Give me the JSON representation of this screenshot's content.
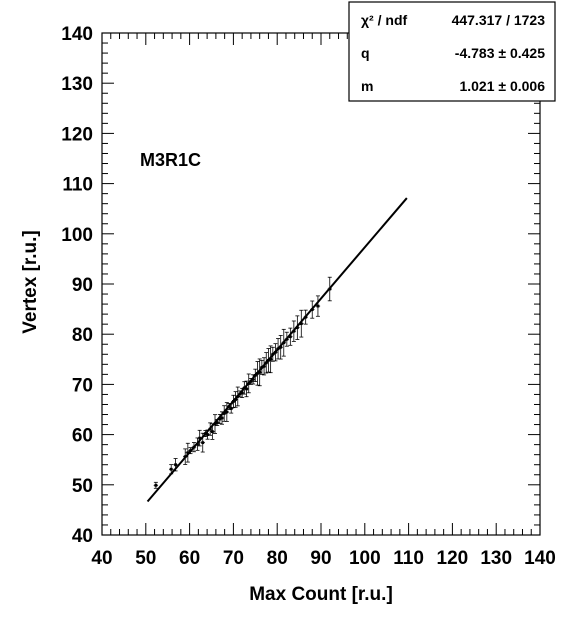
{
  "chart_data": {
    "type": "scatter",
    "title": "",
    "xlabel": "Max Count [r.u.]",
    "ylabel": "Vertex [r.u.]",
    "xlim": [
      40,
      140
    ],
    "ylim": [
      40,
      140
    ],
    "xticks": [
      "40",
      "50",
      "60",
      "70",
      "80",
      "90",
      "100",
      "110",
      "120",
      "130",
      "140"
    ],
    "yticks": [
      "40",
      "50",
      "60",
      "70",
      "80",
      "90",
      "100",
      "110",
      "120",
      "130",
      "140"
    ],
    "annotation": "M3R1C",
    "error_bars": true,
    "fit": {
      "type": "line",
      "q": -4.783,
      "m": 1.021,
      "x_range": [
        50.4,
        109.6
      ]
    },
    "stats_box": {
      "rows": [
        {
          "label": "χ² / ndf",
          "value": "447.317 / 1723"
        },
        {
          "label": "q",
          "value": "-4.783 ± 0.425"
        },
        {
          "label": "m",
          "value": "1.021 ± 0.006"
        }
      ],
      "position": "top-right"
    },
    "points": [
      [
        52.3,
        49.9
      ],
      [
        55.8,
        53.1
      ],
      [
        56.8,
        54.0
      ],
      [
        59.0,
        55.6
      ],
      [
        59.6,
        56.4
      ],
      [
        60.2,
        56.8
      ],
      [
        61.0,
        57.5
      ],
      [
        61.8,
        58.1
      ],
      [
        62.3,
        59.3
      ],
      [
        63.0,
        58.4
      ],
      [
        63.6,
        60.2
      ],
      [
        64.1,
        60.0
      ],
      [
        64.7,
        61.1
      ],
      [
        65.2,
        60.6
      ],
      [
        65.8,
        62.1
      ],
      [
        66.3,
        62.4
      ],
      [
        66.9,
        63.1
      ],
      [
        67.4,
        63.3
      ],
      [
        67.9,
        64.2
      ],
      [
        68.5,
        64.5
      ],
      [
        69.0,
        65.6
      ],
      [
        69.5,
        65.2
      ],
      [
        70.0,
        66.6
      ],
      [
        70.5,
        67.0
      ],
      [
        71.0,
        67.6
      ],
      [
        71.5,
        68.1
      ],
      [
        72.0,
        68.3
      ],
      [
        72.5,
        69.3
      ],
      [
        73.0,
        69.1
      ],
      [
        73.5,
        70.2
      ],
      [
        74.0,
        70.6
      ],
      [
        74.5,
        71.0
      ],
      [
        75.0,
        71.8
      ],
      [
        75.5,
        72.2
      ],
      [
        76.0,
        72.4
      ],
      [
        76.5,
        73.4
      ],
      [
        77.0,
        73.6
      ],
      [
        77.5,
        74.3
      ],
      [
        78.0,
        74.8
      ],
      [
        78.5,
        75.0
      ],
      [
        79.0,
        76.0
      ],
      [
        79.6,
        76.4
      ],
      [
        80.2,
        77.1
      ],
      [
        80.8,
        77.4
      ],
      [
        81.5,
        78.3
      ],
      [
        82.2,
        79.0
      ],
      [
        83.0,
        79.5
      ],
      [
        83.8,
        80.6
      ],
      [
        84.6,
        81.3
      ],
      [
        85.5,
        82.1
      ],
      [
        86.5,
        83.4
      ],
      [
        88.0,
        84.9
      ],
      [
        89.3,
        85.6
      ],
      [
        92.0,
        89.0
      ]
    ]
  }
}
